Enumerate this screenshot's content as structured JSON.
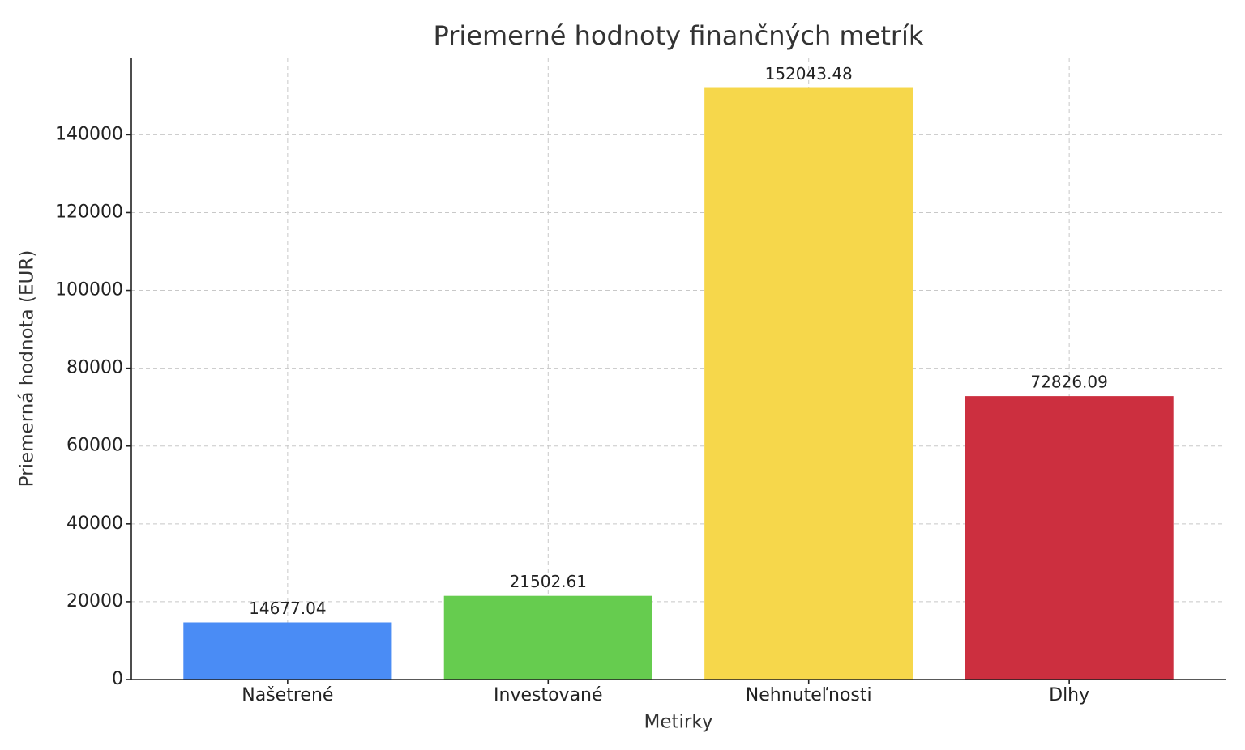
{
  "chart_data": {
    "type": "bar",
    "title": "Priemerné hodnoty finančných metrík",
    "x_label": "Metirky",
    "y_label": "Priemerná hodnota (EUR)",
    "categories": [
      "Našetrené",
      "Investované",
      "Nehnuteľnosti",
      "Dlhy"
    ],
    "values": [
      14677.04,
      21502.61,
      152043.48,
      72826.09
    ],
    "colors": [
      "#4a8cf5",
      "#66cc4f",
      "#f6d74b",
      "#cc2f3f"
    ],
    "ylim": [
      0,
      159645
    ],
    "yticks": [
      0,
      20000,
      40000,
      60000,
      80000,
      100000,
      120000,
      140000
    ],
    "grid": true
  }
}
